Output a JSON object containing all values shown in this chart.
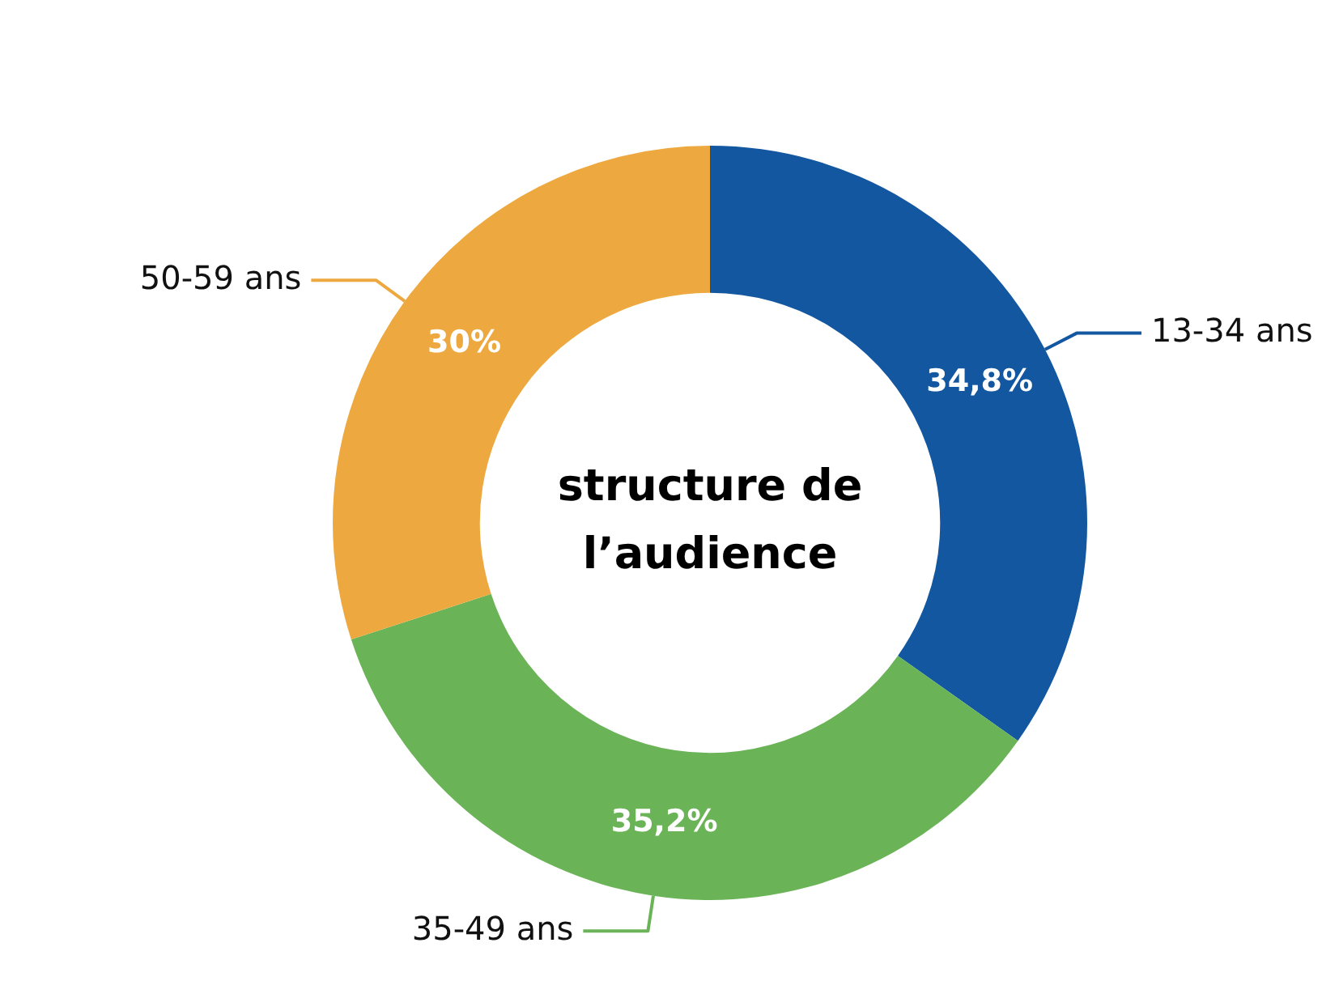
{
  "chart_data": {
    "type": "donut",
    "title": "structure de l’audience",
    "categories": [
      "13-34 ans",
      "35-49 ans",
      "50-59 ans"
    ],
    "values": [
      34.8,
      35.2,
      30
    ],
    "colors": [
      "#1257a0",
      "#6ab457",
      "#eda940"
    ],
    "value_labels": [
      "34,8%",
      "35,2%",
      "30%"
    ],
    "legend": false
  }
}
